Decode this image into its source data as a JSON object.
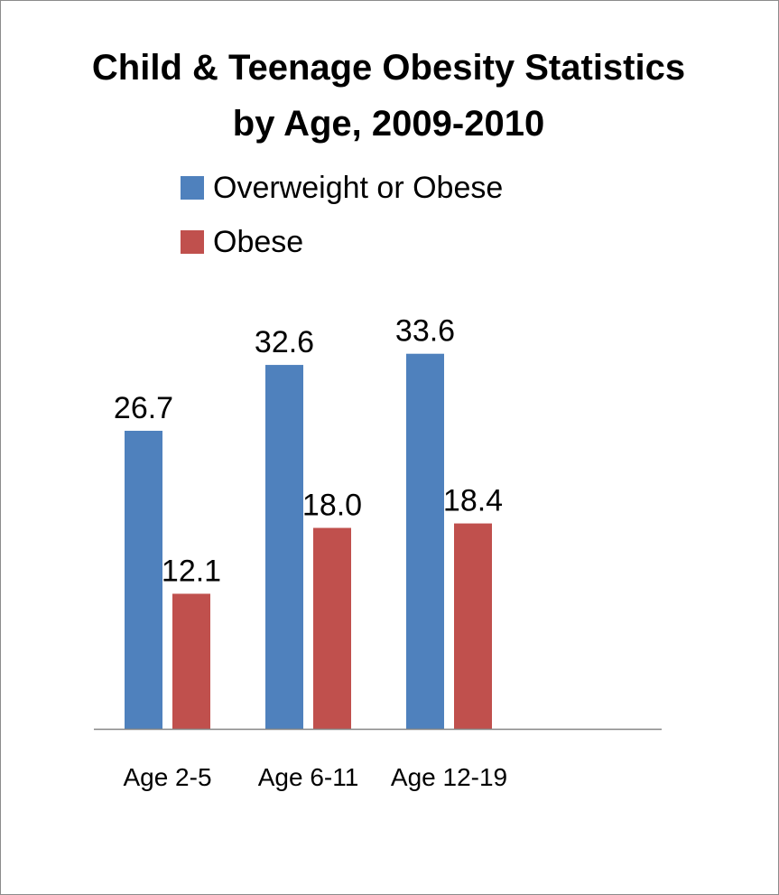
{
  "chart_data": {
    "type": "bar",
    "title": "Child & Teenage Obesity Statistics by Age, 2009-2010",
    "title_lines": [
      "Child & Teenage Obesity Statistics",
      "by Age, 2009-2010"
    ],
    "categories": [
      "Age 2-5",
      "Age 6-11",
      "Age 12-19"
    ],
    "series": [
      {
        "name": "Overweight or Obese",
        "values": [
          26.7,
          32.6,
          33.6
        ],
        "labels": [
          "26.7",
          "32.6",
          "33.6"
        ],
        "color": "#4f81bd"
      },
      {
        "name": "Obese",
        "values": [
          12.1,
          18.0,
          18.4
        ],
        "labels": [
          "12.1",
          "18.0",
          "18.4"
        ],
        "color": "#c0504d"
      }
    ],
    "xlabel": "",
    "ylabel": "",
    "ylim": [
      0,
      40
    ],
    "grid": false,
    "legend_position": "top",
    "axis_color": "#868686"
  }
}
